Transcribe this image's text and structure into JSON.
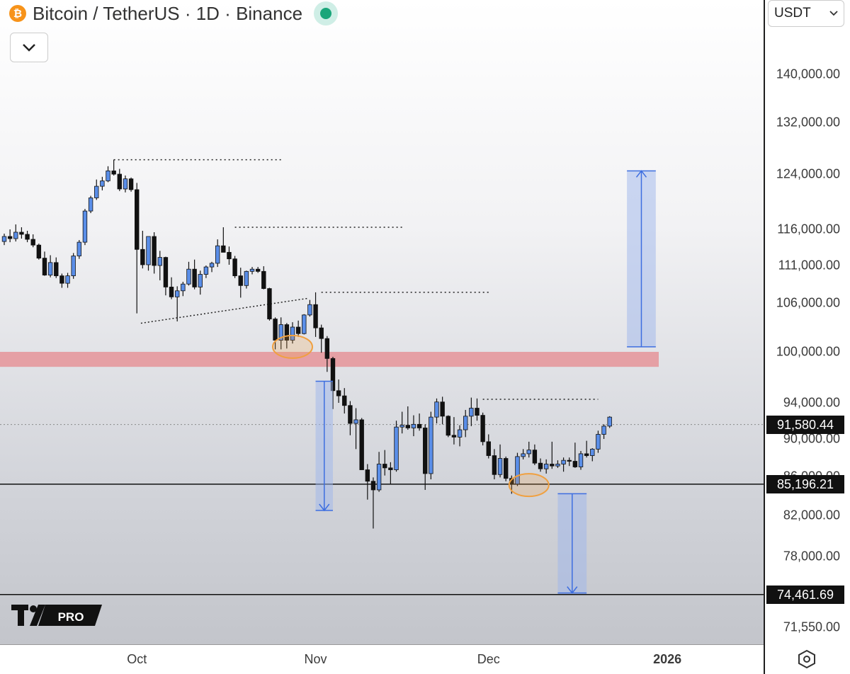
{
  "header": {
    "title": "Bitcoin / TetherUS · 1D · Binance",
    "exchange_icon": "bitcoin-icon",
    "status_color": "#1aa67a",
    "collapse_icon": "chevron-down-icon"
  },
  "currency_select": {
    "value": "USDT",
    "icon": "chevron-down-icon"
  },
  "logo": {
    "text": "PRO"
  },
  "settings_icon": "hexagon-settings-icon",
  "colors": {
    "up_candle": "#5a8ee8",
    "down_candle": "#111111",
    "support_zone": "#e58a8f",
    "projection": "#3d6ee0",
    "highlight_circle": "#f0a040"
  },
  "chart_data": {
    "type": "candlestick",
    "title": "Bitcoin / TetherUS · 1D · Binance",
    "ylim": [
      68800,
      150500
    ],
    "y_ticks": [
      "140,000.00",
      "132,000.00",
      "124,000.00",
      "116,000.00",
      "111,000.00",
      "106,000.00",
      "100,000.00",
      "94,000.00",
      "90,000.00",
      "86,000.00",
      "82,000.00",
      "78,000.00",
      "71,550.00"
    ],
    "x_ticks": [
      {
        "label": "Oct",
        "date": "2025-10-01",
        "bold": false
      },
      {
        "label": "Nov",
        "date": "2025-11-01",
        "bold": false
      },
      {
        "label": "Dec",
        "date": "2025-12-01",
        "bold": false
      },
      {
        "label": "2026",
        "date": "2026-01-01",
        "bold": true
      }
    ],
    "x_start_date": "2025-09-08",
    "candles": [
      [
        114300,
        115400,
        113800,
        115000
      ],
      [
        115000,
        116000,
        114200,
        114700
      ],
      [
        114700,
        116700,
        114300,
        115600
      ],
      [
        115600,
        116300,
        114700,
        115300
      ],
      [
        115300,
        115800,
        114200,
        114600
      ],
      [
        114600,
        115300,
        113500,
        113800
      ],
      [
        113800,
        114000,
        111800,
        112000
      ],
      [
        112000,
        112900,
        109600,
        109700
      ],
      [
        109700,
        112400,
        109400,
        111400
      ],
      [
        111400,
        112100,
        109300,
        109600
      ],
      [
        109600,
        109900,
        108000,
        108600
      ],
      [
        108600,
        110000,
        108000,
        109600
      ],
      [
        109600,
        112700,
        109200,
        112300
      ],
      [
        112300,
        114500,
        111900,
        114200
      ],
      [
        114200,
        118900,
        113800,
        118600
      ],
      [
        118600,
        120800,
        118300,
        120500
      ],
      [
        120500,
        123200,
        120200,
        122200
      ],
      [
        122200,
        123600,
        121600,
        123000
      ],
      [
        123000,
        125200,
        122800,
        124500
      ],
      [
        124500,
        126200,
        123800,
        124000
      ],
      [
        124000,
        124800,
        121500,
        121800
      ],
      [
        121800,
        123800,
        121300,
        123300
      ],
      [
        123300,
        123500,
        121400,
        121700
      ],
      [
        121700,
        122700,
        104700,
        113200
      ],
      [
        113200,
        115800,
        110600,
        111100
      ],
      [
        111100,
        115000,
        110300,
        115000
      ],
      [
        115000,
        115600,
        109900,
        111000
      ],
      [
        111000,
        113000,
        109000,
        112100
      ],
      [
        112100,
        112200,
        107000,
        108100
      ],
      [
        108100,
        109400,
        106500,
        106800
      ],
      [
        106800,
        108200,
        103700,
        107600
      ],
      [
        107600,
        108800,
        106900,
        108500
      ],
      [
        108500,
        111500,
        108300,
        110500
      ],
      [
        110500,
        111800,
        107800,
        108100
      ],
      [
        108100,
        110300,
        107100,
        109800
      ],
      [
        109800,
        111000,
        109300,
        110800
      ],
      [
        110800,
        111500,
        110100,
        111300
      ],
      [
        111300,
        114600,
        110800,
        113700
      ],
      [
        113700,
        116300,
        112800,
        112800
      ],
      [
        112800,
        113600,
        111100,
        111900
      ],
      [
        111900,
        112300,
        109300,
        109600
      ],
      [
        109600,
        110700,
        106700,
        108300
      ],
      [
        108300,
        110300,
        107900,
        110200
      ],
      [
        110200,
        110800,
        109800,
        110500
      ],
      [
        110500,
        110800,
        110000,
        110200
      ],
      [
        110200,
        110900,
        107800,
        107900
      ],
      [
        107900,
        108000,
        103800,
        104000
      ],
      [
        104000,
        104200,
        100300,
        101400
      ],
      [
        101400,
        104200,
        100300,
        103300
      ],
      [
        103300,
        103500,
        100400,
        101400
      ],
      [
        101400,
        103600,
        101000,
        103000
      ],
      [
        103000,
        103800,
        101800,
        102200
      ],
      [
        102200,
        104600,
        102100,
        104500
      ],
      [
        104500,
        106400,
        104300,
        105800
      ],
      [
        105800,
        107400,
        101800,
        102900
      ],
      [
        102900,
        103300,
        99900,
        101600
      ],
      [
        101600,
        101900,
        97600,
        99200
      ],
      [
        99200,
        99400,
        93300,
        95400
      ],
      [
        95400,
        96700,
        94000,
        94800
      ],
      [
        94800,
        95700,
        92800,
        93700
      ],
      [
        93700,
        94200,
        90400,
        91700
      ],
      [
        91700,
        93400,
        88900,
        92100
      ],
      [
        92100,
        92300,
        86700,
        86700
      ],
      [
        86700,
        87300,
        83600,
        85500
      ],
      [
        85500,
        85900,
        80700,
        84600
      ],
      [
        84600,
        88600,
        84400,
        87300
      ],
      [
        87300,
        88800,
        86100,
        86900
      ],
      [
        86900,
        87500,
        85200,
        86700
      ],
      [
        86700,
        92000,
        86500,
        91300
      ],
      [
        91300,
        93000,
        90600,
        91500
      ],
      [
        91500,
        93600,
        91000,
        91200
      ],
      [
        91200,
        92600,
        90300,
        91600
      ],
      [
        91600,
        92800,
        90900,
        91200
      ],
      [
        91200,
        91600,
        84600,
        86300
      ],
      [
        86300,
        93000,
        85700,
        92400
      ],
      [
        92400,
        94500,
        91700,
        94100
      ],
      [
        94100,
        94700,
        91600,
        92500
      ],
      [
        92500,
        92600,
        90200,
        90400
      ],
      [
        90400,
        92400,
        89400,
        90200
      ],
      [
        90200,
        91500,
        89200,
        91000
      ],
      [
        91000,
        93200,
        90200,
        92500
      ],
      [
        92500,
        94600,
        91400,
        93400
      ],
      [
        93400,
        94500,
        92000,
        92600
      ],
      [
        92600,
        92900,
        89300,
        89700
      ],
      [
        89700,
        90500,
        87900,
        88200
      ],
      [
        88200,
        88900,
        85700,
        86200
      ],
      [
        86200,
        89400,
        85900,
        87900
      ],
      [
        87900,
        88100,
        85500,
        85800
      ],
      [
        85800,
        86100,
        84200,
        85200
      ],
      [
        85200,
        88500,
        85000,
        88100
      ],
      [
        88100,
        88900,
        87800,
        88400
      ],
      [
        88400,
        89700,
        88000,
        88800
      ],
      [
        88800,
        89400,
        87200,
        87400
      ],
      [
        87400,
        87900,
        86500,
        86800
      ],
      [
        86800,
        87800,
        86300,
        87300
      ],
      [
        87300,
        89700,
        86800,
        87100
      ],
      [
        87100,
        87700,
        86900,
        87300
      ],
      [
        87300,
        88000,
        86500,
        87700
      ],
      [
        87700,
        88000,
        87100,
        87600
      ],
      [
        87600,
        89600,
        86900,
        87000
      ],
      [
        87000,
        88700,
        86700,
        88400
      ],
      [
        88400,
        89800,
        88000,
        88200
      ],
      [
        88200,
        89000,
        87600,
        88900
      ],
      [
        88900,
        90900,
        88500,
        90500
      ],
      [
        90500,
        91600,
        90000,
        91400
      ],
      [
        91400,
        92500,
        91200,
        92400
      ]
    ],
    "support_zone": [
      98200,
      100000
    ],
    "horizontal_levels": [
      85196.21,
      74461.69
    ],
    "current_price": 91580.44,
    "price_labels": [
      "91,580.44",
      "85,196.21",
      "74,461.69"
    ],
    "projection_arrows": [
      {
        "from": 100600,
        "to": 124500
      },
      {
        "from": 96500,
        "to": 82500
      },
      {
        "from": 84200,
        "to": 74600
      }
    ],
    "dotted_levels": [
      126200,
      116300,
      107400,
      94400
    ],
    "trendline": [
      104000,
      107000
    ]
  }
}
